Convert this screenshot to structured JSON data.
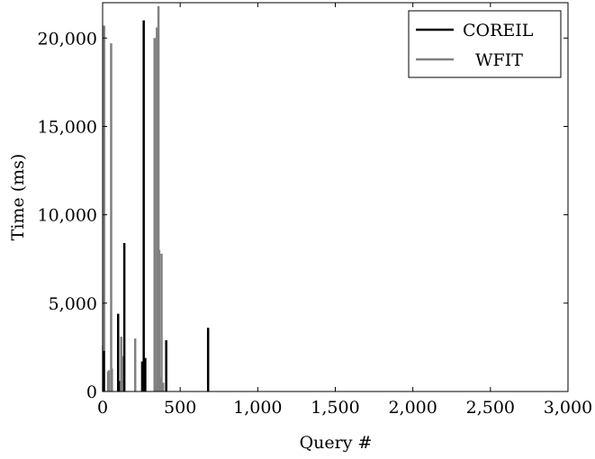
{
  "chart_data": {
    "type": "bar",
    "xlabel": "Query #",
    "ylabel": "Time (ms)",
    "xlim": [
      0,
      3000
    ],
    "ylim": [
      0,
      22000
    ],
    "xticks": [
      0,
      500,
      1000,
      1500,
      2000,
      2500,
      3000
    ],
    "xtick_labels": [
      "0",
      "500",
      "1,000",
      "1,500",
      "2,000",
      "2,500",
      "3,000"
    ],
    "yticks": [
      0,
      5000,
      10000,
      15000,
      20000
    ],
    "ytick_labels": [
      "0",
      "5,000",
      "10,000",
      "15,000",
      "20,000"
    ],
    "grid": false,
    "legend_position": "top-right",
    "series": [
      {
        "name": "COREIL",
        "color": "#000000",
        "stroke_width": 2.5,
        "x": [
          8,
          100,
          105,
          140,
          255,
          265,
          275,
          410,
          680
        ],
        "values": [
          2300,
          4400,
          600,
          8400,
          1700,
          21000,
          1900,
          2900,
          3600
        ]
      },
      {
        "name": "WFIT",
        "color": "#808080",
        "stroke_width": 2.5,
        "x": [
          3,
          10,
          35,
          40,
          55,
          60,
          120,
          130,
          210,
          335,
          345,
          350,
          360,
          365,
          370,
          380,
          390
        ],
        "values": [
          2600,
          20700,
          1100,
          1200,
          19700,
          1300,
          3100,
          2000,
          3000,
          20000,
          300,
          20600,
          21800,
          8000,
          800,
          7800,
          500
        ]
      }
    ]
  }
}
